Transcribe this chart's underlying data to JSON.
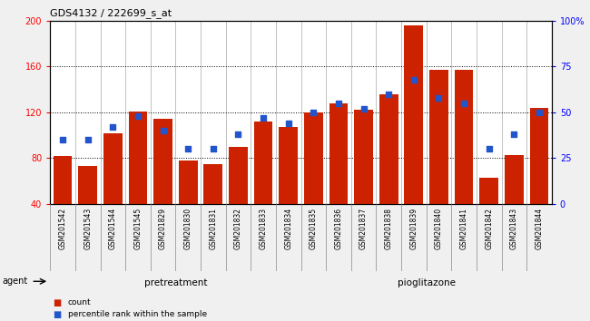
{
  "title": "GDS4132 / 222699_s_at",
  "samples": [
    "GSM201542",
    "GSM201543",
    "GSM201544",
    "GSM201545",
    "GSM201829",
    "GSM201830",
    "GSM201831",
    "GSM201832",
    "GSM201833",
    "GSM201834",
    "GSM201835",
    "GSM201836",
    "GSM201837",
    "GSM201838",
    "GSM201839",
    "GSM201840",
    "GSM201841",
    "GSM201842",
    "GSM201843",
    "GSM201844"
  ],
  "counts": [
    82,
    73,
    102,
    121,
    114,
    78,
    75,
    90,
    112,
    107,
    120,
    128,
    122,
    136,
    196,
    157,
    157,
    63,
    83,
    124
  ],
  "percentiles": [
    35,
    35,
    42,
    48,
    40,
    30,
    30,
    38,
    47,
    44,
    50,
    55,
    52,
    60,
    68,
    58,
    55,
    30,
    38,
    50
  ],
  "pretreatment_count": 10,
  "pioglitazone_count": 10,
  "bar_color": "#cc2200",
  "dot_color": "#2255cc",
  "ylim_left": [
    40,
    200
  ],
  "ylim_right": [
    0,
    100
  ],
  "yticks_left": [
    40,
    80,
    120,
    160,
    200
  ],
  "yticks_right": [
    0,
    25,
    50,
    75,
    100
  ],
  "grid_lines": [
    80,
    120,
    160
  ],
  "pretreatment_color": "#bbffbb",
  "pioglitazone_color": "#44dd44",
  "col_bg_color": "#cccccc",
  "agent_label": "agent",
  "legend_count_label": "count",
  "legend_percentile_label": "percentile rank within the sample",
  "fig_bg_color": "#f0f0f0",
  "plot_bg_color": "#ffffff"
}
